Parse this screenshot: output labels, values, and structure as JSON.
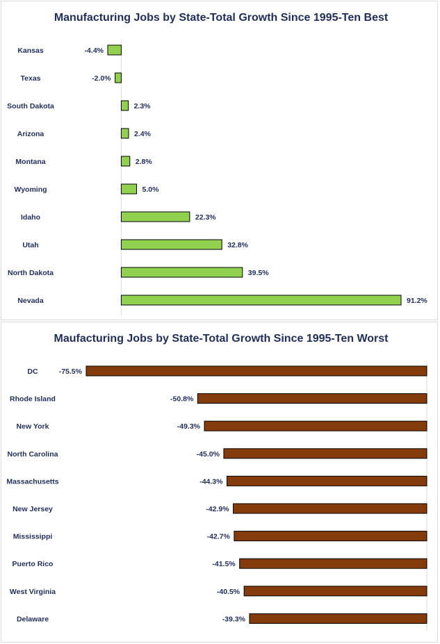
{
  "chart_data": [
    {
      "type": "bar",
      "orientation": "horizontal",
      "title": "Manufacturing Jobs by State-Total Growth Since 1995-Ten Best",
      "categories": [
        "Kansas",
        "Texas",
        "South Dakota",
        "Arizona",
        "Montana",
        "Wyoming",
        "Idaho",
        "Utah",
        "North Dakota",
        "Nevada"
      ],
      "values": [
        -4.4,
        -2.0,
        2.3,
        2.4,
        2.8,
        5.0,
        22.3,
        32.8,
        39.5,
        91.2
      ],
      "labels": [
        "-4.4%",
        "-2.0%",
        "2.3%",
        "2.4%",
        "2.8%",
        "5.0%",
        "22.3%",
        "32.8%",
        "39.5%",
        "91.2%"
      ],
      "bar_color": "#92d050",
      "xlim": [
        -4.4,
        91.2
      ]
    },
    {
      "type": "bar",
      "orientation": "horizontal",
      "title": "Maufacturing Jobs by State-Total Growth Since 1995-Ten Worst",
      "categories": [
        "DC",
        "Rhode Island",
        "New York",
        "North Carolina",
        "Massachusetts",
        "New Jersey",
        "Mississippi",
        "Puerto Rico",
        "West Virginia",
        "Delaware"
      ],
      "values": [
        -75.5,
        -50.8,
        -49.3,
        -45.0,
        -44.3,
        -42.9,
        -42.7,
        -41.5,
        -40.5,
        -39.3
      ],
      "labels": [
        "-75.5%",
        "-50.8%",
        "-49.3%",
        "-45.0%",
        "-44.3%",
        "-42.9%",
        "-42.7%",
        "-41.5%",
        "-40.5%",
        "-39.3%"
      ],
      "bar_color": "#843c0c",
      "xlim": [
        -75.5,
        0
      ]
    }
  ]
}
